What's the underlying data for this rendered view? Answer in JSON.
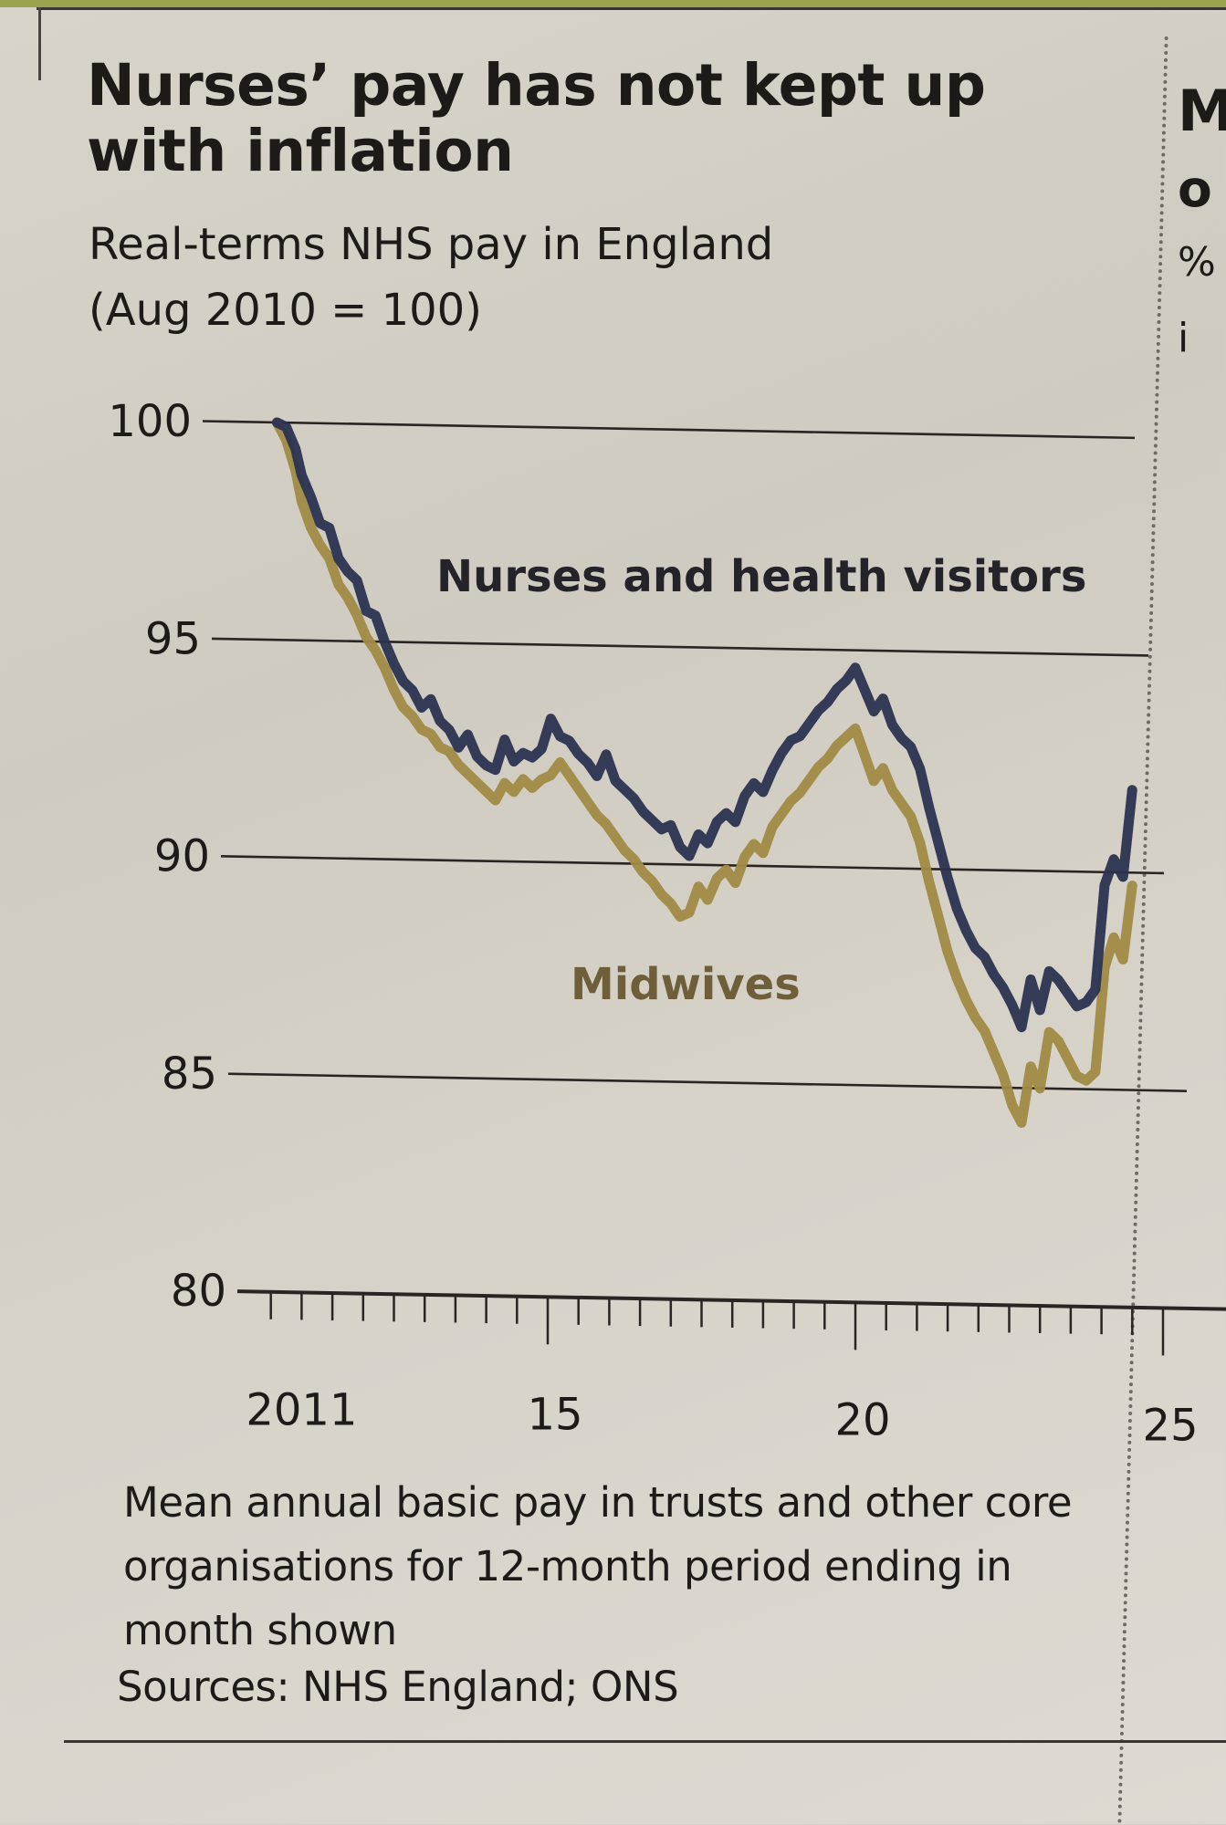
{
  "page": {
    "right_column_fragments": [
      "M",
      "o",
      "%",
      "i"
    ]
  },
  "chart_data": {
    "type": "line",
    "title": "Nurses’ pay has not kept up with inflation",
    "subtitle_line1": "Real-terms NHS pay in England",
    "subtitle_line2": "(Aug 2010 = 100)",
    "xlabel": "",
    "ylabel": "",
    "ylim": [
      80,
      100
    ],
    "xlim": [
      2010,
      2025
    ],
    "grid": true,
    "yticks": [
      100,
      95,
      90,
      85,
      80
    ],
    "ytick_labels": [
      "100",
      "95",
      "90",
      "85",
      "80"
    ],
    "xticks_major": [
      2011,
      2015,
      2020,
      2025
    ],
    "xtick_labels": [
      "2011",
      "15",
      "20",
      "25"
    ],
    "legend": "inline-labels",
    "series": [
      {
        "name": "Nurses and health visitors",
        "color": "#2b3350",
        "x": [
          2010.6,
          2010.75,
          2010.9,
          2011.0,
          2011.15,
          2011.3,
          2011.45,
          2011.6,
          2011.75,
          2011.9,
          2012.05,
          2012.2,
          2012.35,
          2012.5,
          2012.65,
          2012.8,
          2012.95,
          2013.1,
          2013.25,
          2013.4,
          2013.55,
          2013.7,
          2013.85,
          2014.0,
          2014.15,
          2014.3,
          2014.45,
          2014.6,
          2014.75,
          2014.9,
          2015.05,
          2015.2,
          2015.35,
          2015.5,
          2015.65,
          2015.8,
          2015.95,
          2016.1,
          2016.25,
          2016.4,
          2016.55,
          2016.7,
          2016.85,
          2017.0,
          2017.15,
          2017.3,
          2017.45,
          2017.6,
          2017.75,
          2017.9,
          2018.05,
          2018.2,
          2018.35,
          2018.5,
          2018.65,
          2018.8,
          2018.95,
          2019.1,
          2019.25,
          2019.4,
          2019.55,
          2019.7,
          2019.85,
          2020.0,
          2020.15,
          2020.3,
          2020.45,
          2020.6,
          2020.75,
          2020.9,
          2021.05,
          2021.2,
          2021.35,
          2021.5,
          2021.65,
          2021.8,
          2021.95,
          2022.1,
          2022.25,
          2022.4,
          2022.55,
          2022.7,
          2022.85,
          2023.0,
          2023.15,
          2023.3,
          2023.45,
          2023.6,
          2023.75,
          2023.9,
          2024.05,
          2024.2,
          2024.35,
          2024.5
        ],
        "values": [
          100.0,
          99.9,
          99.4,
          98.8,
          98.3,
          97.7,
          97.6,
          96.9,
          96.6,
          96.4,
          95.7,
          95.6,
          95.0,
          94.5,
          94.1,
          93.9,
          93.5,
          93.7,
          93.2,
          93.0,
          92.6,
          92.9,
          92.4,
          92.2,
          92.1,
          92.8,
          92.3,
          92.5,
          92.4,
          92.6,
          93.3,
          92.9,
          92.8,
          92.5,
          92.3,
          92.0,
          92.5,
          91.9,
          91.7,
          91.5,
          91.2,
          91.0,
          90.8,
          90.9,
          90.4,
          90.2,
          90.7,
          90.5,
          91.0,
          91.2,
          91.0,
          91.6,
          91.9,
          91.7,
          92.2,
          92.6,
          92.9,
          93.0,
          93.3,
          93.6,
          93.8,
          94.1,
          94.3,
          94.6,
          94.1,
          93.6,
          93.9,
          93.3,
          93.0,
          92.8,
          92.3,
          91.4,
          90.6,
          89.8,
          89.1,
          88.6,
          88.2,
          88.0,
          87.6,
          87.3,
          86.9,
          86.4,
          87.5,
          86.8,
          87.7,
          87.5,
          87.2,
          86.9,
          87.0,
          87.3,
          89.7,
          90.3,
          89.9,
          91.9
        ]
      },
      {
        "name": "Midwives",
        "color": "#a08a45",
        "x": [
          2010.6,
          2010.75,
          2010.9,
          2011.0,
          2011.15,
          2011.3,
          2011.45,
          2011.6,
          2011.75,
          2011.9,
          2012.05,
          2012.2,
          2012.35,
          2012.5,
          2012.65,
          2012.8,
          2012.95,
          2013.1,
          2013.25,
          2013.4,
          2013.55,
          2013.7,
          2013.85,
          2014.0,
          2014.15,
          2014.3,
          2014.45,
          2014.6,
          2014.75,
          2014.9,
          2015.05,
          2015.2,
          2015.35,
          2015.5,
          2015.65,
          2015.8,
          2015.95,
          2016.1,
          2016.25,
          2016.4,
          2016.55,
          2016.7,
          2016.85,
          2017.0,
          2017.15,
          2017.3,
          2017.45,
          2017.6,
          2017.75,
          2017.9,
          2018.05,
          2018.2,
          2018.35,
          2018.5,
          2018.65,
          2018.8,
          2018.95,
          2019.1,
          2019.25,
          2019.4,
          2019.55,
          2019.7,
          2019.85,
          2020.0,
          2020.15,
          2020.3,
          2020.45,
          2020.6,
          2020.75,
          2020.9,
          2021.05,
          2021.2,
          2021.35,
          2021.5,
          2021.65,
          2021.8,
          2021.95,
          2022.1,
          2022.25,
          2022.4,
          2022.55,
          2022.7,
          2022.85,
          2023.0,
          2023.15,
          2023.3,
          2023.45,
          2023.6,
          2023.75,
          2023.9,
          2024.05,
          2024.2,
          2024.35,
          2024.5
        ],
        "values": [
          100.0,
          99.6,
          98.9,
          98.2,
          97.6,
          97.2,
          96.9,
          96.3,
          96.0,
          95.6,
          95.1,
          94.8,
          94.4,
          93.9,
          93.5,
          93.3,
          93.0,
          92.9,
          92.6,
          92.5,
          92.2,
          92.0,
          91.8,
          91.6,
          91.4,
          91.8,
          91.6,
          91.9,
          91.7,
          91.9,
          92.0,
          92.3,
          92.0,
          91.7,
          91.4,
          91.1,
          90.9,
          90.6,
          90.3,
          90.1,
          89.8,
          89.6,
          89.3,
          89.1,
          88.8,
          88.9,
          89.5,
          89.2,
          89.7,
          89.9,
          89.6,
          90.2,
          90.5,
          90.3,
          90.9,
          91.2,
          91.5,
          91.7,
          92.0,
          92.3,
          92.5,
          92.8,
          93.0,
          93.2,
          92.6,
          92.0,
          92.3,
          91.8,
          91.5,
          91.2,
          90.6,
          89.7,
          88.9,
          88.1,
          87.5,
          87.0,
          86.6,
          86.3,
          85.8,
          85.3,
          84.6,
          84.2,
          85.5,
          85.0,
          86.3,
          86.1,
          85.7,
          85.3,
          85.2,
          85.4,
          87.8,
          88.5,
          88.0,
          89.7
        ]
      }
    ],
    "annotations": {
      "footnote_line1": "Mean annual basic pay in trusts and other core",
      "footnote_line2": "organisations for 12-month period ending in",
      "footnote_line3": "month shown",
      "source": "Sources: NHS England; ONS"
    }
  }
}
